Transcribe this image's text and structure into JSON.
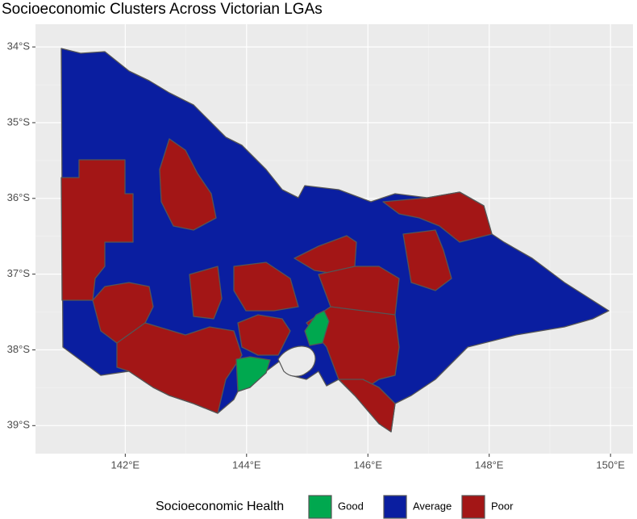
{
  "chart_data": {
    "type": "map",
    "title": "Socioeconomic Clusters Across Victorian LGAs",
    "xlim": [
      140.52,
      150.37
    ],
    "ylim": [
      -39.37,
      -33.7
    ],
    "xticks": [
      {
        "value": 142,
        "label": "142°E"
      },
      {
        "value": 144,
        "label": "144°E"
      },
      {
        "value": 146,
        "label": "146°E"
      },
      {
        "value": 148,
        "label": "148°E"
      },
      {
        "value": 150,
        "label": "150°E"
      }
    ],
    "yticks": [
      {
        "value": -34,
        "label": "34°S"
      },
      {
        "value": -35,
        "label": "35°S"
      },
      {
        "value": -36,
        "label": "36°S"
      },
      {
        "value": -37,
        "label": "37°S"
      },
      {
        "value": -38,
        "label": "38°S"
      },
      {
        "value": -39,
        "label": "39°S"
      }
    ],
    "grid": true,
    "legend": {
      "title": "Socioeconomic Health",
      "position": "bottom",
      "entries": [
        {
          "name": "Good",
          "color": "#00a84f"
        },
        {
          "name": "Average",
          "color": "#0a1ea0"
        },
        {
          "name": "Poor",
          "color": "#a31616"
        }
      ]
    }
  }
}
